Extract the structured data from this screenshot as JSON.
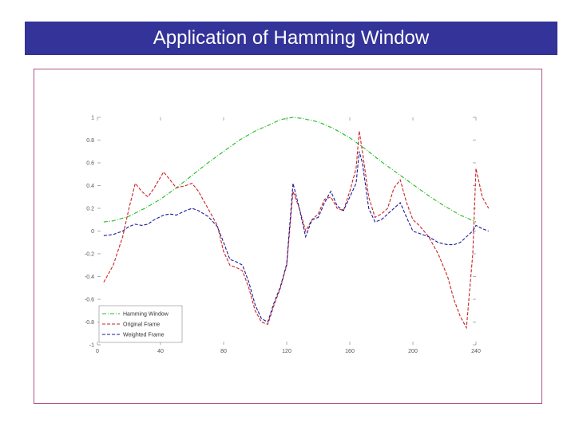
{
  "slide": {
    "title": "Application of Hamming Window"
  },
  "colors": {
    "title_bg": "#333399",
    "frame_border": "#b0548a",
    "hamming": "#22bb22",
    "original": "#cc2222",
    "weighted": "#1a1a99"
  },
  "chart_data": {
    "type": "line",
    "title": "",
    "xlabel": "",
    "ylabel": "",
    "xlim": [
      0,
      240
    ],
    "ylim": [
      -1,
      1
    ],
    "x_ticks": [
      0,
      40,
      80,
      120,
      160,
      200,
      240
    ],
    "x_tick_labels": [
      "0",
      "40",
      "80",
      "120",
      "160",
      "200",
      "240"
    ],
    "y_ticks": [
      1,
      0.8,
      0.6,
      0.4,
      0.2,
      0,
      -0.2,
      -0.4,
      -0.6,
      -0.8,
      -1
    ],
    "y_tick_labels": [
      "1",
      "0.8",
      "0.6",
      "0.4",
      "0.2",
      "0",
      "-0.2",
      "-0.4",
      "-0.6",
      "-0.8",
      "-1"
    ],
    "legend_position": "bottom-left",
    "series": [
      {
        "name": "Hamming Window",
        "color": "#22bb22",
        "dash": "dashdot",
        "points": [
          [
            4,
            0.08
          ],
          [
            10,
            0.09
          ],
          [
            20,
            0.13
          ],
          [
            30,
            0.2
          ],
          [
            40,
            0.28
          ],
          [
            50,
            0.38
          ],
          [
            60,
            0.49
          ],
          [
            70,
            0.6
          ],
          [
            80,
            0.7
          ],
          [
            90,
            0.8
          ],
          [
            100,
            0.88
          ],
          [
            110,
            0.94
          ],
          [
            116,
            0.98
          ],
          [
            120,
            0.99
          ],
          [
            124,
            1.0
          ],
          [
            130,
            0.99
          ],
          [
            140,
            0.96
          ],
          [
            150,
            0.9
          ],
          [
            160,
            0.82
          ],
          [
            170,
            0.72
          ],
          [
            180,
            0.61
          ],
          [
            190,
            0.51
          ],
          [
            200,
            0.41
          ],
          [
            210,
            0.31
          ],
          [
            220,
            0.22
          ],
          [
            230,
            0.14
          ],
          [
            240,
            0.08
          ]
        ]
      },
      {
        "name": "Original Frame",
        "color": "#cc2222",
        "dash": "dashed",
        "points": [
          [
            4,
            -0.45
          ],
          [
            10,
            -0.3
          ],
          [
            16,
            -0.05
          ],
          [
            20,
            0.2
          ],
          [
            24,
            0.42
          ],
          [
            28,
            0.35
          ],
          [
            32,
            0.3
          ],
          [
            36,
            0.38
          ],
          [
            42,
            0.52
          ],
          [
            46,
            0.45
          ],
          [
            50,
            0.38
          ],
          [
            56,
            0.4
          ],
          [
            60,
            0.42
          ],
          [
            64,
            0.35
          ],
          [
            70,
            0.2
          ],
          [
            76,
            0.05
          ],
          [
            80,
            -0.18
          ],
          [
            84,
            -0.3
          ],
          [
            88,
            -0.32
          ],
          [
            92,
            -0.35
          ],
          [
            96,
            -0.5
          ],
          [
            100,
            -0.7
          ],
          [
            104,
            -0.8
          ],
          [
            108,
            -0.82
          ],
          [
            112,
            -0.65
          ],
          [
            116,
            -0.5
          ],
          [
            120,
            -0.3
          ],
          [
            124,
            0.35
          ],
          [
            128,
            0.2
          ],
          [
            132,
            0.0
          ],
          [
            136,
            0.1
          ],
          [
            140,
            0.15
          ],
          [
            144,
            0.28
          ],
          [
            148,
            0.3
          ],
          [
            152,
            0.2
          ],
          [
            156,
            0.18
          ],
          [
            160,
            0.35
          ],
          [
            164,
            0.55
          ],
          [
            166,
            0.88
          ],
          [
            168,
            0.7
          ],
          [
            172,
            0.3
          ],
          [
            176,
            0.12
          ],
          [
            180,
            0.15
          ],
          [
            184,
            0.2
          ],
          [
            188,
            0.38
          ],
          [
            192,
            0.45
          ],
          [
            196,
            0.25
          ],
          [
            200,
            0.1
          ],
          [
            204,
            0.05
          ],
          [
            210,
            -0.05
          ],
          [
            216,
            -0.2
          ],
          [
            222,
            -0.4
          ],
          [
            226,
            -0.6
          ],
          [
            230,
            -0.75
          ],
          [
            234,
            -0.85
          ],
          [
            238,
            -0.2
          ],
          [
            240,
            0.55
          ],
          [
            244,
            0.3
          ],
          [
            248,
            0.2
          ]
        ]
      },
      {
        "name": "Weighted Frame",
        "color": "#1a1a99",
        "dash": "dashed",
        "points": [
          [
            4,
            -0.04
          ],
          [
            10,
            -0.03
          ],
          [
            16,
            0.0
          ],
          [
            20,
            0.04
          ],
          [
            24,
            0.06
          ],
          [
            28,
            0.05
          ],
          [
            32,
            0.06
          ],
          [
            36,
            0.1
          ],
          [
            42,
            0.14
          ],
          [
            46,
            0.15
          ],
          [
            50,
            0.14
          ],
          [
            56,
            0.18
          ],
          [
            60,
            0.2
          ],
          [
            64,
            0.18
          ],
          [
            70,
            0.13
          ],
          [
            76,
            0.04
          ],
          [
            80,
            -0.1
          ],
          [
            84,
            -0.25
          ],
          [
            88,
            -0.27
          ],
          [
            92,
            -0.3
          ],
          [
            96,
            -0.45
          ],
          [
            100,
            -0.65
          ],
          [
            104,
            -0.77
          ],
          [
            108,
            -0.8
          ],
          [
            112,
            -0.63
          ],
          [
            116,
            -0.49
          ],
          [
            120,
            -0.29
          ],
          [
            124,
            0.42
          ],
          [
            128,
            0.2
          ],
          [
            132,
            -0.05
          ],
          [
            136,
            0.1
          ],
          [
            140,
            0.12
          ],
          [
            144,
            0.25
          ],
          [
            148,
            0.35
          ],
          [
            152,
            0.22
          ],
          [
            156,
            0.18
          ],
          [
            160,
            0.3
          ],
          [
            164,
            0.42
          ],
          [
            166,
            0.7
          ],
          [
            168,
            0.6
          ],
          [
            172,
            0.2
          ],
          [
            176,
            0.08
          ],
          [
            180,
            0.1
          ],
          [
            184,
            0.15
          ],
          [
            188,
            0.2
          ],
          [
            192,
            0.25
          ],
          [
            196,
            0.12
          ],
          [
            200,
            0.0
          ],
          [
            204,
            -0.02
          ],
          [
            210,
            -0.05
          ],
          [
            216,
            -0.1
          ],
          [
            222,
            -0.12
          ],
          [
            226,
            -0.12
          ],
          [
            230,
            -0.1
          ],
          [
            234,
            -0.05
          ],
          [
            238,
            0.0
          ],
          [
            240,
            0.05
          ],
          [
            244,
            0.02
          ],
          [
            248,
            0.0
          ]
        ]
      }
    ]
  }
}
